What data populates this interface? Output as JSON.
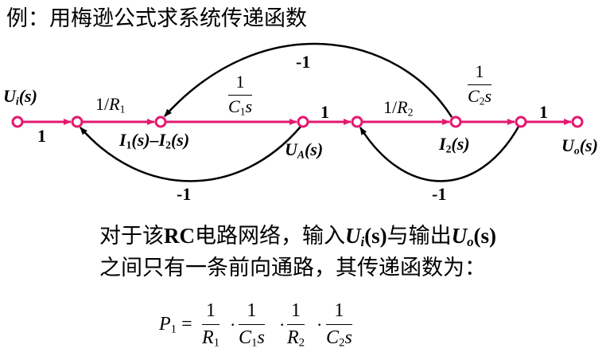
{
  "title": "例：用梅逊公式求系统传递函数",
  "colors": {
    "forward_path": "#e3196f",
    "feedback": "#000000"
  },
  "graph": {
    "nodes": {
      "ui": {
        "main": "U",
        "sub": "i",
        "arg": "(s)"
      },
      "i1i2": {
        "a": "I",
        "a_sub": "1",
        "a_arg": "(s)–",
        "b": "I",
        "b_sub": "2",
        "b_arg": "(s)"
      },
      "ua": {
        "main": "U",
        "sub": "A",
        "arg": "(s)"
      },
      "i2": {
        "main": "I",
        "sub": "2",
        "arg": "(s)"
      },
      "uo": {
        "main": "U",
        "sub": "o",
        "arg": "(s)"
      }
    },
    "gains": {
      "g1": "1",
      "g_r1": {
        "num": "1/",
        "var": "R",
        "sub": "1"
      },
      "g_c1": {
        "num": "1",
        "var": "C",
        "sub": "1",
        "tail": "s"
      },
      "g3": "1",
      "g_r2": {
        "num": "1/",
        "var": "R",
        "sub": "2"
      },
      "g_c2": {
        "num": "1",
        "var": "C",
        "sub": "2",
        "tail": "s"
      },
      "g5": "1",
      "fb_top": "-1",
      "fb_left": "-1",
      "fb_right": "-1"
    }
  },
  "text": {
    "line1": {
      "a": "对于该",
      "b": "RC",
      "c": "电路网络，输入",
      "d": "U",
      "d_sub": "i",
      "d_arg": "(s)",
      "e": "与输出",
      "f": "U",
      "f_sub": "o",
      "f_arg": "(s)"
    },
    "line2": "之间只有一条前向通路，其传递函数为："
  },
  "formula": {
    "lhs": "P",
    "lhs_sub": "1",
    "eq": "=",
    "dot": "·",
    "terms": [
      {
        "num": "1",
        "den": "R",
        "den_sub": "1",
        "den_tail": ""
      },
      {
        "num": "1",
        "den": "C",
        "den_sub": "1",
        "den_tail": "s"
      },
      {
        "num": "1",
        "den": "R",
        "den_sub": "2",
        "den_tail": ""
      },
      {
        "num": "1",
        "den": "C",
        "den_sub": "2",
        "den_tail": "s"
      }
    ]
  }
}
